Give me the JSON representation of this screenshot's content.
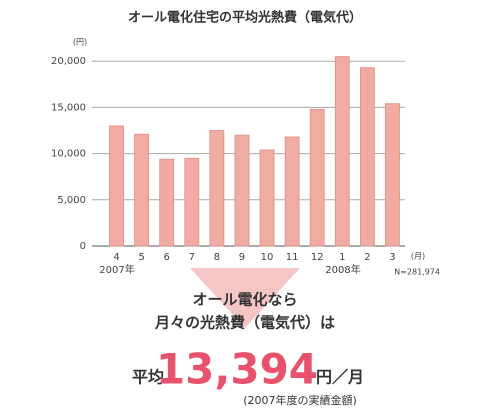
{
  "chart_data": {
    "type": "bar",
    "title": "オール電化住宅の平均光熱費（電気代）",
    "y_unit": "(円)",
    "x_unit": "(月)",
    "categories": [
      "4",
      "5",
      "6",
      "7",
      "8",
      "9",
      "10",
      "11",
      "12",
      "1",
      "2",
      "3"
    ],
    "year_labels": [
      "2007年",
      "2008年"
    ],
    "values": [
      13000,
      12100,
      9400,
      9500,
      12500,
      12000,
      10400,
      11800,
      14800,
      20500,
      19300,
      15400
    ],
    "color": "#f0aca2",
    "edge_color": "#dd8e84",
    "ylim": [
      0,
      21000
    ],
    "yticks": [
      0,
      {
        "value": 5000,
        "label": "5,000"
      },
      {
        "value": 10000,
        "label": "10,000"
      },
      {
        "value": 15000,
        "label": "15,000"
      },
      {
        "value": 20000,
        "label": "20,000"
      }
    ],
    "grid": true,
    "note": "N=281,974"
  },
  "summary": {
    "line1": "オール電化なら",
    "line2": "月々の光熱費（電気代）は",
    "prefix": "平均",
    "amount": "13,394",
    "unit": "円／月",
    "footnote": "(2007年度の実績金額)"
  }
}
